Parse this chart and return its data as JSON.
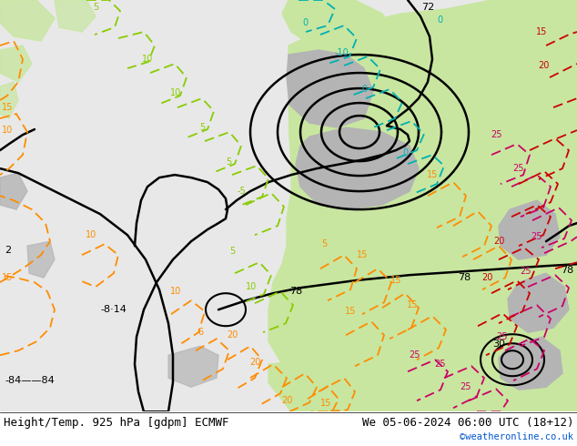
{
  "title_left": "Height/Temp. 925 hPa [gdpm] ECMWF",
  "title_right": "We 05-06-2024 06:00 UTC (18+12)",
  "title_right2": "©weatheronline.co.uk",
  "title_fontsize": 9,
  "subtitle_fontsize": 7.5,
  "bg_sea": "#e8e8e8",
  "bg_land_green": "#c8e6a0",
  "bg_land_gray": "#b4b4b4",
  "c_black": "#000000",
  "c_orange": "#ff8c00",
  "c_green_lime": "#88cc00",
  "c_green": "#00aa00",
  "c_cyan": "#00b0b0",
  "c_magenta": "#cc0066",
  "c_red": "#cc0000",
  "figsize": [
    6.34,
    4.9
  ],
  "dpi": 100
}
